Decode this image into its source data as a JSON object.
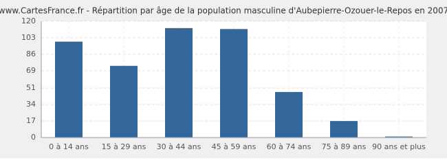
{
  "chart_data": {
    "type": "bar",
    "title": "www.CartesFrance.fr - Répartition par âge de la population masculine d'Aubepierre-Ozouer-le-Repos en 2007",
    "categories": [
      "0 à 14 ans",
      "15 à 29 ans",
      "30 à 44 ans",
      "45 à 59 ans",
      "60 à 74 ans",
      "75 à 89 ans",
      "90 ans et plus"
    ],
    "values": [
      99,
      74,
      113,
      112,
      47,
      17,
      1
    ],
    "color": "#336699",
    "ylim": [
      0,
      120
    ],
    "yticks": [
      0,
      17,
      34,
      51,
      69,
      86,
      103,
      120
    ],
    "grid": true
  }
}
